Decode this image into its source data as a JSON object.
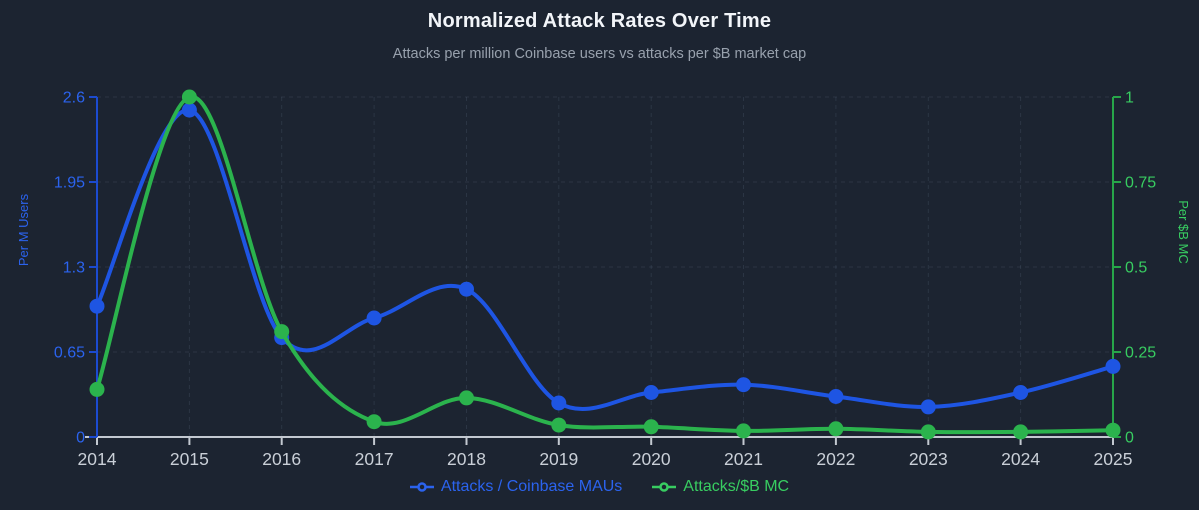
{
  "chart_data": {
    "type": "line",
    "title": "Normalized Attack Rates Over Time",
    "subtitle": "Attacks per million Coinbase users vs attacks per $B market cap",
    "x": [
      2014,
      2015,
      2016,
      2017,
      2018,
      2019,
      2020,
      2021,
      2022,
      2023,
      2024,
      2025
    ],
    "x_axis": {
      "tick_labels": [
        "2014",
        "2015",
        "2016",
        "2017",
        "2018",
        "2019",
        "2020",
        "2021",
        "2022",
        "2023",
        "2024",
        "2025"
      ],
      "label_color": "#c9cfd7",
      "line_color": "#c3c9d1"
    },
    "left_axis": {
      "title": "Per M Users",
      "ticks": [
        0,
        0.65,
        1.3,
        1.95,
        2.6
      ],
      "tick_labels": [
        "0",
        "0.65",
        "1.3",
        "1.95",
        "2.6"
      ],
      "range": [
        0,
        2.6
      ],
      "label_color": "#2b63ee",
      "line_color": "#1c4bd0"
    },
    "right_axis": {
      "title": "Per $B MC",
      "ticks": [
        0,
        0.25,
        0.5,
        0.75,
        1
      ],
      "tick_labels": [
        "0",
        "0.25",
        "0.5",
        "0.75",
        "1"
      ],
      "range": [
        0,
        1
      ],
      "label_color": "#38cd61",
      "line_color": "#27a649"
    },
    "series": [
      {
        "name": "Attacks / Coinbase MAUs",
        "axis": "left",
        "color": "#1e55e3",
        "values": [
          1.0,
          2.5,
          0.76,
          0.91,
          1.13,
          0.26,
          0.34,
          0.4,
          0.31,
          0.23,
          0.34,
          0.54
        ]
      },
      {
        "name": "Attacks/$B MC",
        "axis": "right",
        "color": "#2bb34d",
        "values": [
          0.14,
          1.0,
          0.31,
          0.045,
          0.115,
          0.035,
          0.03,
          0.018,
          0.024,
          0.015,
          0.015,
          0.02
        ]
      }
    ],
    "grid": true,
    "grid_color": "rgba(148,168,200,0.13)",
    "legend_position": "bottom",
    "background_color": "#1c2431"
  },
  "legend": {
    "items": [
      {
        "label": "Attacks / Coinbase MAUs",
        "color": "#2b63ee"
      },
      {
        "label": "Attacks/$B MC",
        "color": "#38cd61"
      }
    ]
  }
}
